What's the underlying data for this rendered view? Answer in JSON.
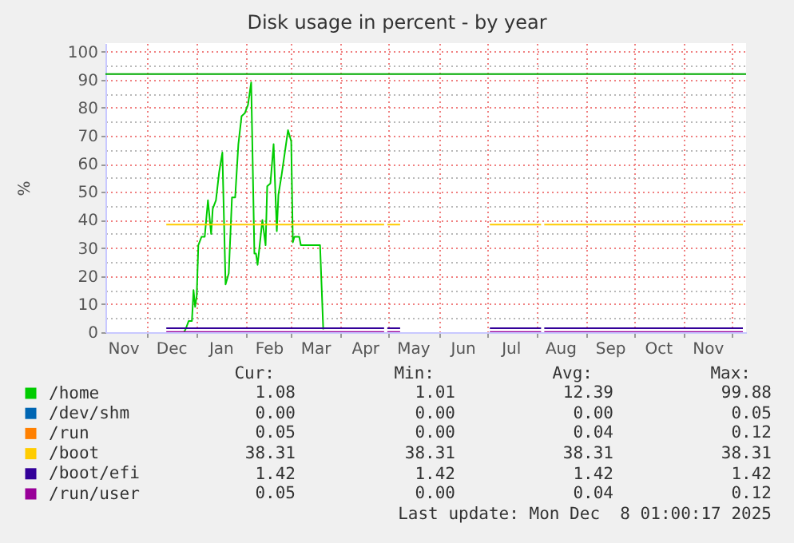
{
  "chart_data": {
    "type": "line",
    "title": "Disk usage in percent - by year",
    "ylabel": "%",
    "xlim": [
      "2024-11-05",
      "2025-12-10"
    ],
    "ylim": [
      0,
      103
    ],
    "xticks": [
      {
        "value": "2024-11-16",
        "label": "Nov"
      },
      {
        "value": "2024-12-01",
        "label": null
      },
      {
        "value": "2024-12-16",
        "label": "Dec"
      },
      {
        "value": "2025-01-01",
        "label": null
      },
      {
        "value": "2025-01-16",
        "label": "Jan"
      },
      {
        "value": "2025-02-01",
        "label": null
      },
      {
        "value": "2025-02-15",
        "label": "Feb"
      },
      {
        "value": "2025-03-01",
        "label": null
      },
      {
        "value": "2025-03-16",
        "label": "Mar"
      },
      {
        "value": "2025-04-01",
        "label": null
      },
      {
        "value": "2025-04-16",
        "label": "Apr"
      },
      {
        "value": "2025-05-01",
        "label": null
      },
      {
        "value": "2025-05-16",
        "label": "May"
      },
      {
        "value": "2025-06-01",
        "label": null
      },
      {
        "value": "2025-06-16",
        "label": "Jun"
      },
      {
        "value": "2025-07-01",
        "label": null
      },
      {
        "value": "2025-07-16",
        "label": "Jul"
      },
      {
        "value": "2025-08-01",
        "label": null
      },
      {
        "value": "2025-08-16",
        "label": "Aug"
      },
      {
        "value": "2025-09-01",
        "label": null
      },
      {
        "value": "2025-09-16",
        "label": "Sep"
      },
      {
        "value": "2025-10-01",
        "label": null
      },
      {
        "value": "2025-10-16",
        "label": "Oct"
      },
      {
        "value": "2025-11-01",
        "label": null
      },
      {
        "value": "2025-11-16",
        "label": "Nov"
      },
      {
        "value": "2025-12-01",
        "label": null
      }
    ],
    "yticks": [
      0,
      {
        "value": 5,
        "label": null
      },
      10,
      {
        "value": 15,
        "label": null
      },
      20,
      {
        "value": 25,
        "label": null
      },
      30,
      {
        "value": 35,
        "label": null
      },
      40,
      {
        "value": 45,
        "label": null
      },
      50,
      {
        "value": 55,
        "label": null
      },
      60,
      {
        "value": 65,
        "label": null
      },
      70,
      {
        "value": 75,
        "label": null
      },
      80,
      {
        "value": 85,
        "label": null
      },
      90,
      {
        "value": 95,
        "label": null
      },
      100
    ],
    "grid": true,
    "legend": "bottom left",
    "ref_lines": [
      {
        "axis": "y",
        "value": 92,
        "color": "#00aa00"
      }
    ],
    "series": [
      {
        "name": "/home",
        "color": "#00cc00",
        "x": [
          "2024-12-24",
          "2024-12-25",
          "2024-12-27",
          "2024-12-29",
          "2024-12-30",
          "2024-12-31",
          "2025-01-01",
          "2025-01-02",
          "2025-01-04",
          "2025-01-06",
          "2025-01-08",
          "2025-01-10",
          "2025-01-11",
          "2025-01-13",
          "2025-01-15",
          "2025-01-17",
          "2025-01-19",
          "2025-01-21",
          "2025-01-23",
          "2025-01-25",
          "2025-01-27",
          "2025-01-29",
          "2025-01-31",
          "2025-02-02",
          "2025-02-04",
          "2025-02-06",
          "2025-02-07",
          "2025-02-08",
          "2025-02-11",
          "2025-02-13",
          "2025-02-14",
          "2025-02-16",
          "2025-02-18",
          "2025-02-20",
          "2025-02-21",
          "2025-02-23",
          "2025-02-25",
          "2025-02-27",
          "2025-03-01",
          "2025-03-02",
          "2025-03-03",
          "2025-03-06",
          "2025-03-07",
          "2025-03-19",
          "2025-03-21"
        ],
        "values": [
          0,
          1,
          4,
          4,
          15,
          9,
          13,
          31,
          34,
          34,
          47,
          35,
          44,
          47,
          57,
          64,
          17,
          21,
          48,
          48,
          67,
          77,
          78,
          81,
          89,
          28,
          28,
          24,
          40,
          31,
          52,
          53,
          67,
          36,
          49,
          56,
          64,
          72,
          68,
          32,
          34,
          34,
          31,
          31,
          1
        ]
      },
      {
        "name": "/dev/shm",
        "color": "#0066b3"
      },
      {
        "name": "/run",
        "color": "#ff8000"
      },
      {
        "name": "/boot",
        "color": "#ffcc00",
        "x": [
          "2024-12-13",
          "2025-04-28",
          "2025-04-29",
          "2025-04-30",
          "2025-05-08",
          "2025-06-01",
          "2025-07-03",
          "2025-08-04",
          "2025-08-05",
          "2025-08-06",
          "2025-12-08"
        ],
        "values": [
          38.31,
          38.31,
          null,
          38.31,
          38.31,
          null,
          38.31,
          38.31,
          null,
          38.31,
          38.31
        ]
      },
      {
        "name": "/boot/efi",
        "color": "#330099",
        "x": [
          "2024-12-13",
          "2025-04-28",
          "2025-04-29",
          "2025-04-30",
          "2025-05-08",
          "2025-06-01",
          "2025-07-03",
          "2025-08-04",
          "2025-08-05",
          "2025-08-06",
          "2025-12-08"
        ],
        "values": [
          1.42,
          1.42,
          null,
          1.42,
          1.42,
          null,
          1.42,
          1.42,
          null,
          1.42,
          1.42
        ]
      },
      {
        "name": "/run/user",
        "color": "#990099",
        "x": [
          "2024-12-13",
          "2025-04-28",
          "2025-04-29",
          "2025-04-30",
          "2025-05-08",
          "2025-06-01",
          "2025-07-03",
          "2025-08-04",
          "2025-08-05",
          "2025-08-06",
          "2025-12-08"
        ],
        "values": [
          0.05,
          0.05,
          null,
          0.05,
          0.05,
          null,
          0.05,
          0.05,
          null,
          0.05,
          0.05
        ]
      }
    ],
    "annotations": [
      "Cur:",
      "Min:",
      "Avg:",
      "Max:",
      "1.08",
      "1.01",
      "12.39",
      "99.88",
      "0.00",
      "0.00",
      "0.00",
      "0.05",
      "0.05",
      "0.00",
      "0.04",
      "0.12",
      "38.31",
      "38.31",
      "38.31",
      "38.31",
      "1.42",
      "1.42",
      "1.42",
      "1.42",
      "0.05",
      "0.00",
      "0.04",
      "0.12",
      "Last update: Mon Dec  8 01:00:17 2025"
    ]
  }
}
